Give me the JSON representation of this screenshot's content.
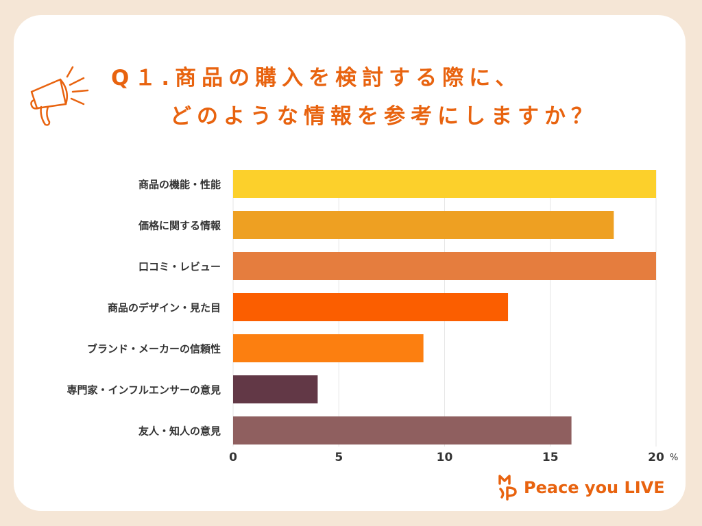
{
  "title": {
    "line1": "Q１.商品の購入を検討する際に、",
    "line2": "どのような情報を参考にしますか？"
  },
  "brand": {
    "name": "Peace you LIVE"
  },
  "colors": {
    "background": "#f5e6d6",
    "accent": "#e8630f"
  },
  "icons": [
    "megaphone-icon",
    "brand-logo-icon"
  ],
  "chart_data": {
    "type": "bar",
    "orientation": "horizontal",
    "categories": [
      "商品の機能・性能",
      "価格に関する情報",
      "口コミ・レビュー",
      "商品のデザイン・見た目",
      "ブランド・メーカーの信頼性",
      "専門家・インフルエンサーの意見",
      "友人・知人の意見"
    ],
    "values": [
      20,
      18,
      20,
      13,
      9,
      4,
      16
    ],
    "bar_colors": [
      "#fcd02b",
      "#eea022",
      "#e57d3e",
      "#fb5e00",
      "#fc7f10",
      "#623846",
      "#8f5f5f"
    ],
    "xlim": [
      0,
      20
    ],
    "xticks": [
      "0",
      "5",
      "10",
      "15",
      "20"
    ],
    "unit": "%",
    "grid": true
  }
}
